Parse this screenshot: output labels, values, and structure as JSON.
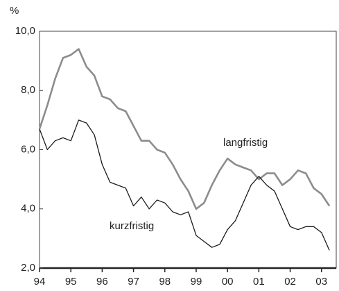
{
  "chart_data": {
    "type": "line",
    "y_label": "%",
    "x": [
      1994,
      1994.25,
      1994.5,
      1994.75,
      1995,
      1995.25,
      1995.5,
      1995.75,
      1996,
      1996.25,
      1996.5,
      1996.75,
      1997,
      1997.25,
      1997.5,
      1997.75,
      1998,
      1998.25,
      1998.5,
      1998.75,
      1999,
      1999.25,
      1999.5,
      1999.75,
      2000,
      2000.25,
      2000.5,
      2000.75,
      2001,
      2001.25,
      2001.5,
      2001.75,
      2002,
      2002.25,
      2002.5,
      2002.75,
      2003,
      2003.25
    ],
    "series": [
      {
        "name": "langfristig",
        "color": "#8c8c8c",
        "values": [
          6.7,
          7.5,
          8.4,
          9.1,
          9.2,
          9.4,
          8.8,
          8.5,
          7.8,
          7.7,
          7.4,
          7.3,
          6.8,
          6.3,
          6.3,
          6.0,
          5.9,
          5.5,
          5.0,
          4.6,
          4.0,
          4.2,
          4.8,
          5.3,
          5.7,
          5.5,
          5.4,
          5.3,
          5.0,
          5.2,
          5.2,
          4.8,
          5.0,
          5.3,
          5.2,
          4.7,
          4.5,
          4.1
        ]
      },
      {
        "name": "kurzfristig",
        "color": "#1a1a1a",
        "values": [
          6.7,
          6.0,
          6.3,
          6.4,
          6.3,
          7.0,
          6.9,
          6.5,
          5.5,
          4.9,
          4.8,
          4.7,
          4.1,
          4.4,
          4.0,
          4.3,
          4.2,
          3.9,
          3.8,
          3.9,
          3.1,
          2.9,
          2.7,
          2.8,
          3.3,
          3.6,
          4.2,
          4.8,
          5.1,
          4.8,
          4.6,
          4.0,
          3.4,
          3.3,
          3.4,
          3.4,
          3.2,
          2.6
        ]
      }
    ],
    "xlim": [
      1994,
      2003.47
    ],
    "xticks": [
      {
        "value": 1994,
        "label": "94"
      },
      {
        "value": 1995,
        "label": "95"
      },
      {
        "value": 1996,
        "label": "96"
      },
      {
        "value": 1997,
        "label": "97"
      },
      {
        "value": 1998,
        "label": "98"
      },
      {
        "value": 1999,
        "label": "99"
      },
      {
        "value": 2000,
        "label": "00"
      },
      {
        "value": 2001,
        "label": "01"
      },
      {
        "value": 2002,
        "label": "02"
      },
      {
        "value": 2003,
        "label": "03"
      }
    ],
    "ylim": [
      2,
      10
    ],
    "yticks": [
      {
        "value": 2,
        "label": "2,0"
      },
      {
        "value": 4,
        "label": "4,0"
      },
      {
        "value": 6,
        "label": "6,0"
      },
      {
        "value": 8,
        "label": "8,0"
      },
      {
        "value": 10,
        "label": "10,0"
      }
    ],
    "grid": false
  }
}
